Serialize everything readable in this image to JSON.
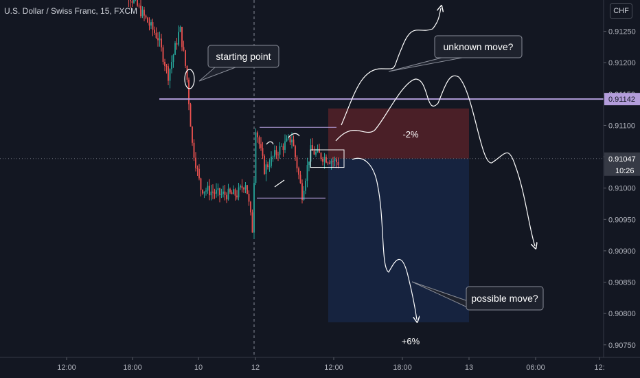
{
  "title": "U.S. Dollar / Swiss Franc, 15, FXCM",
  "currency": "CHF",
  "colors": {
    "background": "#131722",
    "up": "#26a69a",
    "down": "#ef5350",
    "resistance": "#b39ddb",
    "stop_zone": "#4a1f27",
    "target_zone": "#16233f",
    "price_label": "#363a45"
  },
  "chart_data": {
    "type": "candlestick",
    "ylim": [
      0.9073,
      0.913
    ],
    "y_ticks": [
      "0.91250",
      "0.91200",
      "0.91150",
      "0.91100",
      "0.91050",
      "0.91000",
      "0.90950",
      "0.90900",
      "0.90850",
      "0.90800",
      "0.90750"
    ],
    "x_ticks": [
      "12:00",
      "18:00",
      "10",
      "12",
      "12:00",
      "18:00",
      "13",
      "06:00",
      "12:"
    ],
    "resistance_level": {
      "value": 0.91142,
      "label": "0.91142"
    },
    "current_price": {
      "value": 0.91047,
      "label": "0.91047",
      "countdown": "10:26"
    },
    "risk_reward": {
      "stop_top": 0.91127,
      "entry": 0.91047,
      "target_bottom": 0.90786,
      "stop_label": "-2%",
      "target_label": "+6%"
    },
    "annotations": [
      {
        "text": "starting point"
      },
      {
        "text": "unknown move?"
      },
      {
        "text": "possible move?"
      }
    ]
  }
}
